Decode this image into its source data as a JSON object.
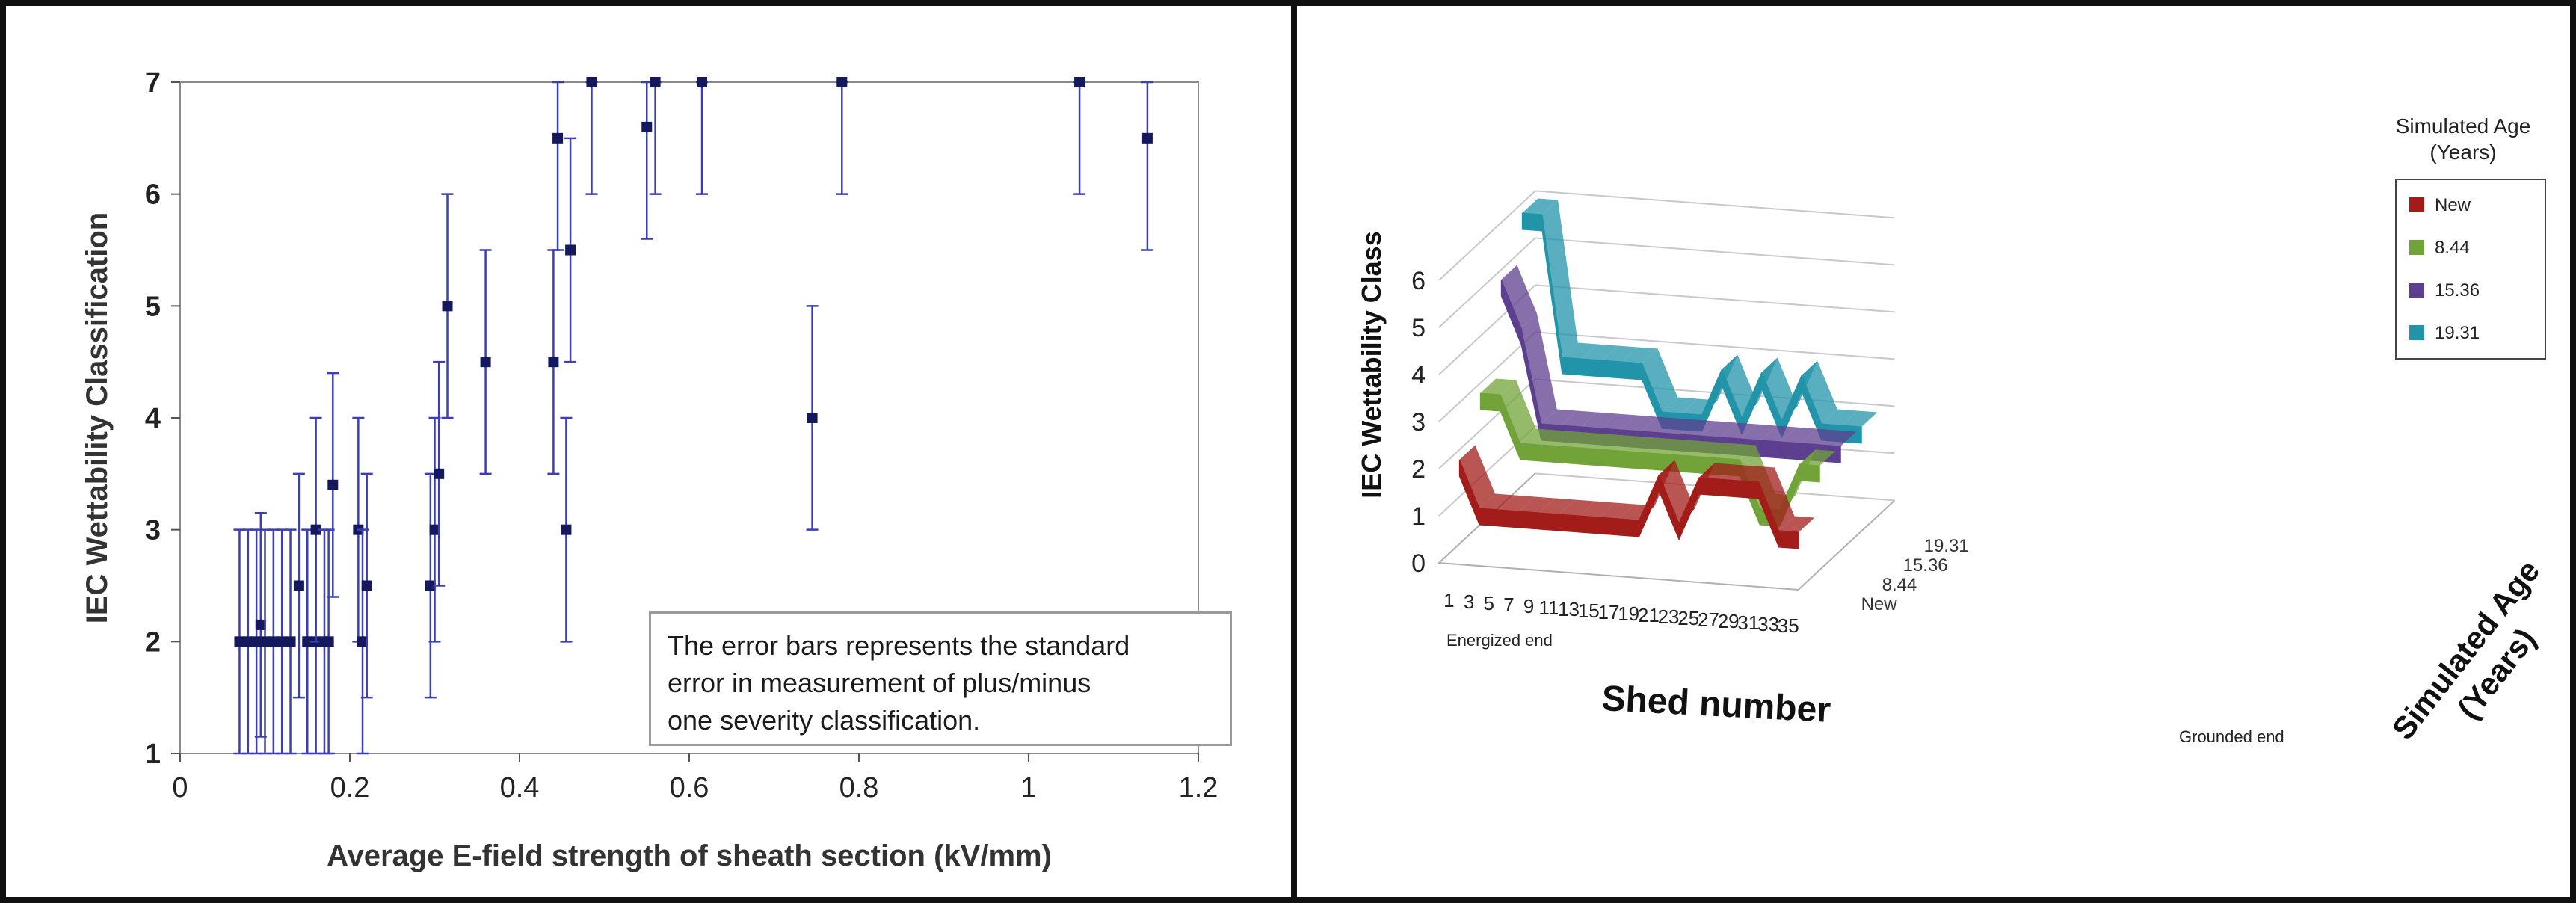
{
  "chart_data": [
    {
      "type": "scatter",
      "title": "",
      "xlabel": "Average E-field strength of sheath section (kV/mm)",
      "ylabel": "IEC Wettability Classification",
      "xlim": [
        0,
        1.2
      ],
      "ylim": [
        1,
        7
      ],
      "x_ticks": [
        "0",
        "0.2",
        "0.4",
        "0.6",
        "0.8",
        "1",
        "1.2"
      ],
      "y_ticks": [
        "1",
        "2",
        "3",
        "4",
        "5",
        "6",
        "7"
      ],
      "grid": false,
      "error_bar": 1,
      "note": [
        "The error bars represents the standard",
        "error in measurement of plus/minus",
        "one severity classification."
      ],
      "colors": {
        "points": "#14185c",
        "error_bars": "#3b3fb0"
      },
      "points": [
        {
          "x": 0.07,
          "y": 2
        },
        {
          "x": 0.08,
          "y": 2
        },
        {
          "x": 0.09,
          "y": 2
        },
        {
          "x": 0.095,
          "y": 2.15
        },
        {
          "x": 0.1,
          "y": 2
        },
        {
          "x": 0.11,
          "y": 2
        },
        {
          "x": 0.12,
          "y": 2
        },
        {
          "x": 0.13,
          "y": 2
        },
        {
          "x": 0.14,
          "y": 2.5
        },
        {
          "x": 0.15,
          "y": 2
        },
        {
          "x": 0.16,
          "y": 2
        },
        {
          "x": 0.16,
          "y": 3
        },
        {
          "x": 0.17,
          "y": 2
        },
        {
          "x": 0.175,
          "y": 2
        },
        {
          "x": 0.18,
          "y": 3.4
        },
        {
          "x": 0.21,
          "y": 3
        },
        {
          "x": 0.215,
          "y": 2
        },
        {
          "x": 0.22,
          "y": 2.5
        },
        {
          "x": 0.295,
          "y": 2.5
        },
        {
          "x": 0.3,
          "y": 3
        },
        {
          "x": 0.305,
          "y": 3.5
        },
        {
          "x": 0.315,
          "y": 5
        },
        {
          "x": 0.36,
          "y": 4.5
        },
        {
          "x": 0.44,
          "y": 4.5
        },
        {
          "x": 0.445,
          "y": 6.5
        },
        {
          "x": 0.455,
          "y": 3
        },
        {
          "x": 0.46,
          "y": 5.5
        },
        {
          "x": 0.485,
          "y": 7
        },
        {
          "x": 0.55,
          "y": 6.6
        },
        {
          "x": 0.56,
          "y": 7
        },
        {
          "x": 0.615,
          "y": 7
        },
        {
          "x": 0.745,
          "y": 4
        },
        {
          "x": 0.78,
          "y": 7
        },
        {
          "x": 1.06,
          "y": 7
        },
        {
          "x": 1.14,
          "y": 6.5
        }
      ]
    },
    {
      "type": "line",
      "title": "",
      "xlabel": "Shed number",
      "ylabel": "IEC Wettability Class",
      "zlabel": "Simulated Age (Years)",
      "x_ticks": [
        "1",
        "3",
        "5",
        "7",
        "9",
        "11",
        "13",
        "15",
        "17",
        "19",
        "21",
        "23",
        "25",
        "27",
        "29",
        "31",
        "33",
        "35"
      ],
      "y_ticks": [
        "0",
        "1",
        "2",
        "3",
        "4",
        "5",
        "6"
      ],
      "z_ticks": [
        "New",
        "8.44",
        "15.36",
        "19.31"
      ],
      "x_end_labels": {
        "left": "Energized end",
        "right": "Grounded end"
      },
      "ylim": [
        0,
        6
      ],
      "legend": {
        "title": "Simulated Age (Years)",
        "placement": "right"
      },
      "x": [
        1,
        3,
        5,
        7,
        9,
        11,
        13,
        15,
        17,
        19,
        21,
        23,
        25,
        27,
        29,
        31,
        33,
        35
      ],
      "series": [
        {
          "name": "New",
          "color": "#a21c19",
          "values": [
            2,
            1,
            1,
            1,
            1,
            1,
            1,
            1,
            1,
            1,
            2,
            1,
            2,
            2,
            2,
            2,
            1,
            1
          ]
        },
        {
          "name": "8.44",
          "color": "#72a338",
          "values": [
            3,
            3,
            2,
            2,
            2,
            2,
            2,
            2,
            2,
            2,
            2,
            2,
            2,
            2,
            1,
            1,
            2,
            2
          ]
        },
        {
          "name": "15.36",
          "color": "#5d3f8f",
          "values": [
            5,
            4,
            2,
            2,
            2,
            2,
            2,
            2,
            2,
            2,
            2,
            2,
            2,
            2,
            2,
            2,
            2,
            2
          ]
        },
        {
          "name": "19.31",
          "color": "#2294a9",
          "values": [
            6,
            6,
            3,
            3,
            3,
            3,
            3,
            2,
            2,
            2,
            3,
            2,
            3,
            2,
            3,
            2,
            2,
            2
          ]
        }
      ]
    }
  ]
}
